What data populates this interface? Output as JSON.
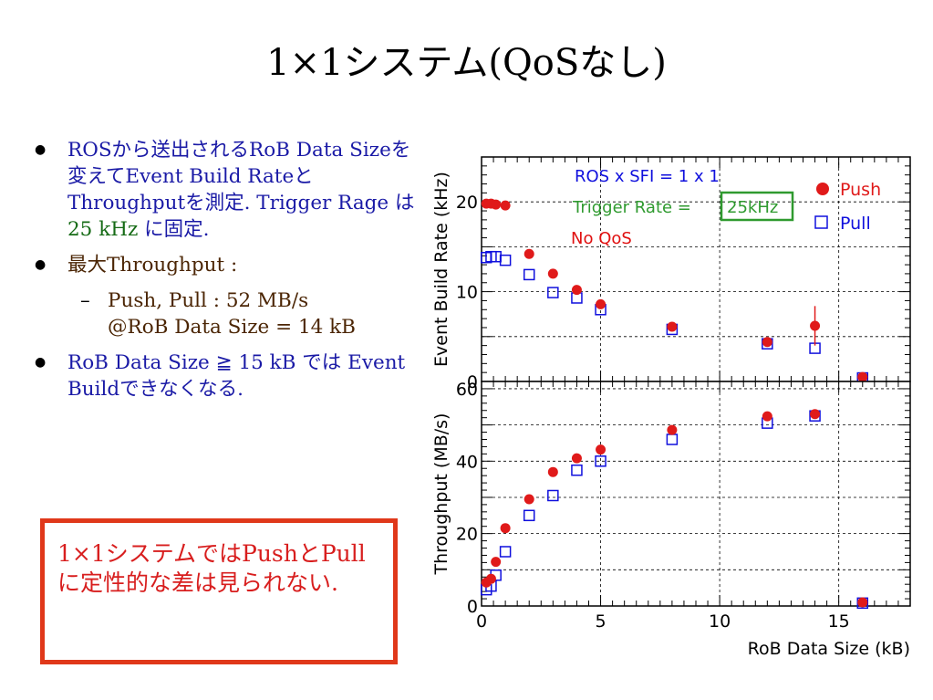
{
  "slide": {
    "title": "1×1システム(QoSなし)",
    "bullets": [
      {
        "a": "ROSから送出されるRoB Data Sizeを変えてEvent Build RateとThroughputを測定.",
        "b": "Trigger Rage は",
        "c": "25 kHz",
        "d": "に固定."
      },
      {
        "a": "最大",
        "b": "Throughput :"
      },
      {
        "a": "Push, Pull : 52 MB/s",
        "b": "@RoB Data Size = 14 kB"
      },
      {
        "a": "RoB Data Size ≧ 15 kB では Event Buildできなくなる."
      }
    ],
    "callout": "1×1システムではPushとPullに定性的な差は見られない."
  },
  "chart_data": [
    {
      "type": "scatter",
      "ylabel": "Event Build Rate (kHz)",
      "xlabel": "",
      "xlim": [
        0,
        18
      ],
      "ylim": [
        0,
        25
      ],
      "yticks": [
        "0",
        "10",
        "20"
      ],
      "grid": true,
      "legend_position": "top-right",
      "annotations": [
        {
          "text": "ROS x SFI = 1 x 1",
          "color": "#1010dd"
        },
        {
          "text": "Trigger Rate = ",
          "color": "#2f9a2f"
        },
        {
          "text": "25kHz",
          "color": "#2f9a2f"
        },
        {
          "text": "No QoS",
          "color": "#e01010"
        }
      ],
      "series": [
        {
          "name": "Push",
          "marker": "filled-circle",
          "color": "#e01a1a",
          "x": [
            0.2,
            0.4,
            0.6,
            1,
            2,
            3,
            4,
            5,
            8,
            12,
            14,
            16
          ],
          "y": [
            19.8,
            19.8,
            19.7,
            19.6,
            14.2,
            12.0,
            10.2,
            8.6,
            6.1,
            4.4,
            6.2,
            0.5
          ],
          "yerr": [
            0,
            0,
            0,
            0,
            0,
            0,
            0,
            0,
            0,
            0,
            2.2,
            0
          ]
        },
        {
          "name": "Pull",
          "marker": "open-square",
          "color": "#1010dd",
          "x": [
            0.2,
            0.4,
            0.6,
            1,
            2,
            3,
            4,
            5,
            8,
            12,
            14,
            16
          ],
          "y": [
            13.8,
            13.9,
            13.9,
            13.5,
            11.9,
            9.9,
            9.3,
            8.0,
            5.8,
            4.2,
            3.7,
            0.4
          ]
        }
      ]
    },
    {
      "type": "scatter",
      "ylabel": "Throughput (MB/s)",
      "xlabel": "RoB Data Size (kB)",
      "xlim": [
        0,
        18
      ],
      "ylim": [
        0,
        62
      ],
      "xticks": [
        "0",
        "5",
        "10",
        "15"
      ],
      "yticks": [
        "0",
        "20",
        "40",
        "60"
      ],
      "grid": true,
      "series": [
        {
          "name": "Push",
          "marker": "filled-circle",
          "color": "#e01a1a",
          "x": [
            0.2,
            0.4,
            0.6,
            1,
            2,
            3,
            4,
            5,
            8,
            12,
            14,
            16
          ],
          "y": [
            6.5,
            7.5,
            12.2,
            21.5,
            29.5,
            37.0,
            40.8,
            43.2,
            48.6,
            52.4,
            53.0,
            1.0
          ]
        },
        {
          "name": "Pull",
          "marker": "open-square",
          "color": "#1010dd",
          "x": [
            0.2,
            0.4,
            0.6,
            1,
            2,
            3,
            4,
            5,
            8,
            12,
            14,
            16
          ],
          "y": [
            4.5,
            5.5,
            8.5,
            15.0,
            25.0,
            30.5,
            37.5,
            40.0,
            46.0,
            50.5,
            52.5,
            0.8
          ]
        }
      ]
    }
  ]
}
